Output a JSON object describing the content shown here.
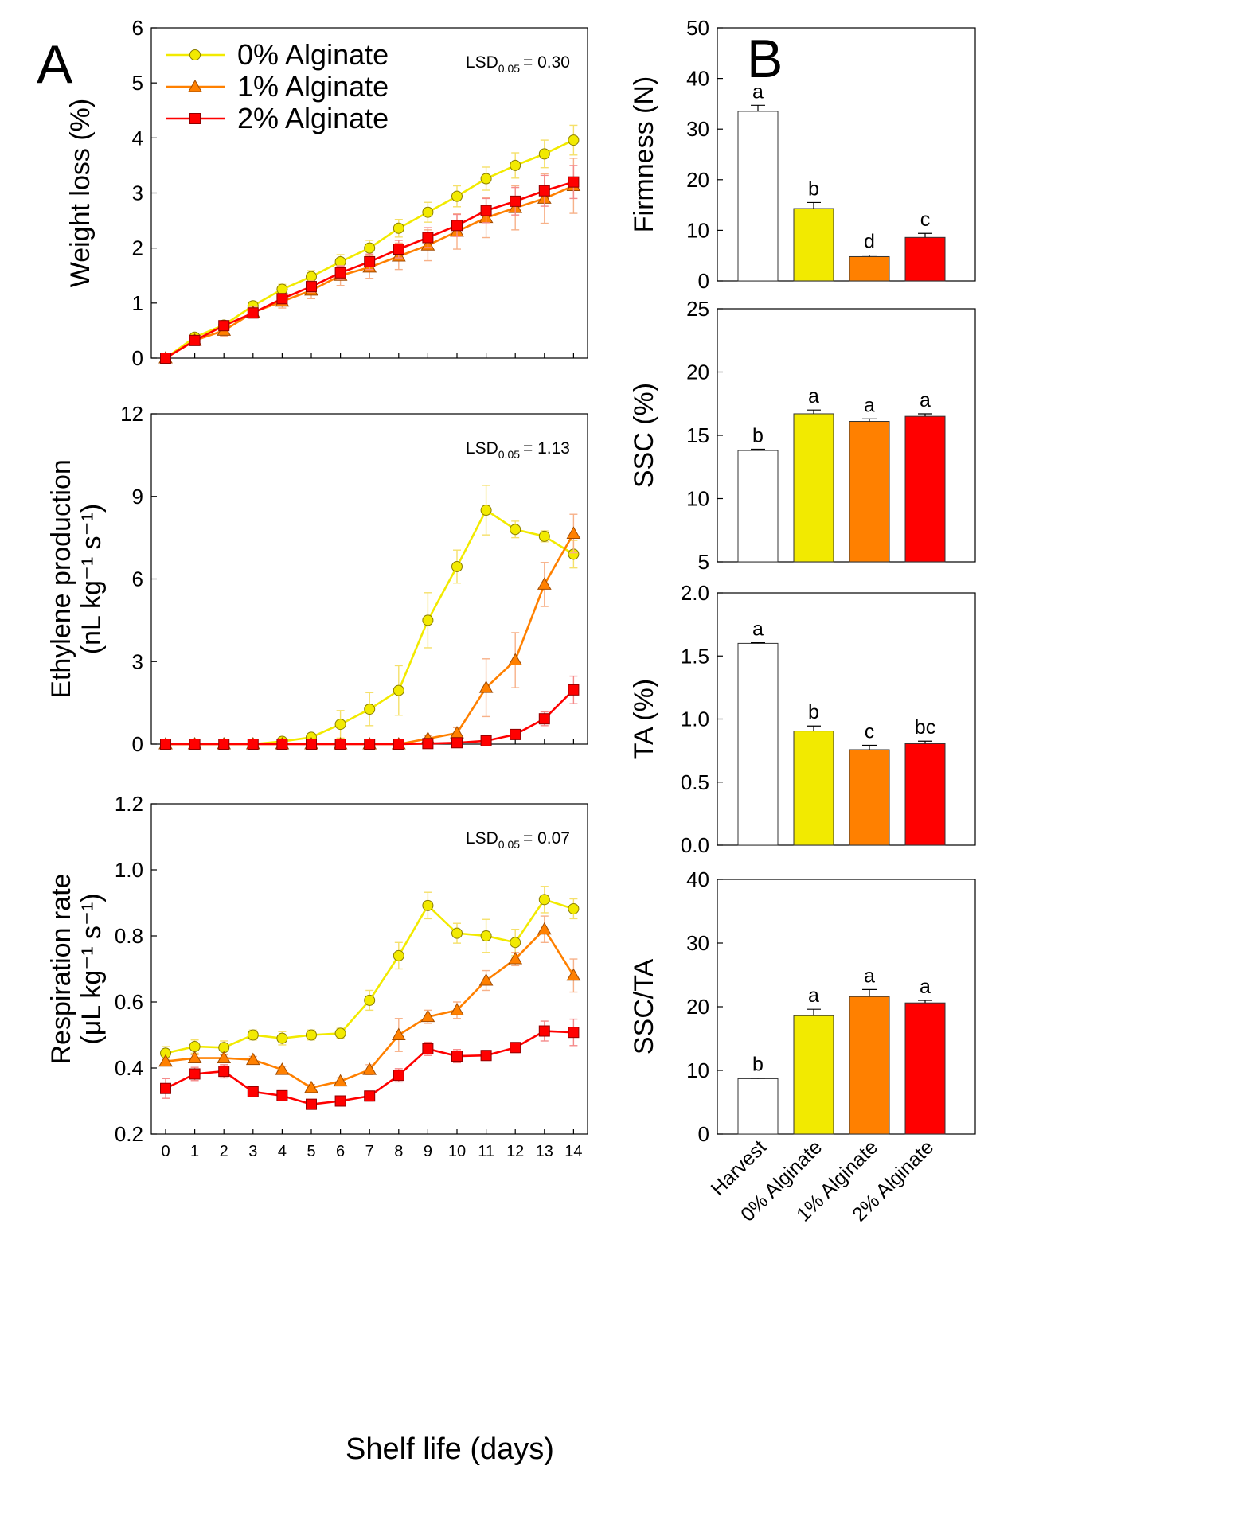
{
  "panels": {
    "A": "A",
    "B": "B"
  },
  "colors": {
    "c0": "#F2EA00",
    "c1": "#FF8000",
    "c2": "#FF0000",
    "harvest": "#FFFFFF",
    "err0": "#F5E06A",
    "err1": "#F7B189",
    "err2": "#F58A8A"
  },
  "legend": {
    "s0": "0% Alginate",
    "s1": "1% Alginate",
    "s2": "2% Alginate"
  },
  "lsd_prefix": "LSD",
  "lsd_sub": "0.05",
  "xlabel": "Shelf life (days)",
  "chart_data": [
    {
      "id": "weight",
      "type": "line",
      "ylabel": [
        "Weight loss (%)"
      ],
      "lsd_value": "= 0.30",
      "ylim": [
        0,
        6
      ],
      "yticks": [
        "0",
        "1",
        "2",
        "3",
        "4",
        "5",
        "6"
      ],
      "x": [
        0,
        1,
        2,
        3,
        4,
        5,
        6,
        7,
        8,
        9,
        10,
        11,
        12,
        13,
        14
      ],
      "series": [
        {
          "name": "0% Alginate",
          "marker": "circle",
          "values": [
            0,
            0.38,
            0.6,
            0.95,
            1.25,
            1.48,
            1.75,
            2.0,
            2.36,
            2.65,
            2.94,
            3.26,
            3.5,
            3.71,
            3.96
          ],
          "err": [
            0,
            0.05,
            0.07,
            0.08,
            0.09,
            0.11,
            0.13,
            0.14,
            0.16,
            0.18,
            0.19,
            0.21,
            0.23,
            0.25,
            0.27
          ]
        },
        {
          "name": "1% Alginate",
          "marker": "triangle",
          "values": [
            0,
            0.32,
            0.5,
            0.83,
            1.03,
            1.23,
            1.5,
            1.65,
            1.85,
            2.05,
            2.3,
            2.55,
            2.73,
            2.9,
            3.13
          ],
          "err": [
            0,
            0.05,
            0.1,
            0.1,
            0.12,
            0.15,
            0.18,
            0.2,
            0.24,
            0.28,
            0.32,
            0.36,
            0.4,
            0.45,
            0.5
          ]
        },
        {
          "name": "2% Alginate",
          "marker": "square",
          "values": [
            0,
            0.32,
            0.59,
            0.82,
            1.08,
            1.3,
            1.55,
            1.75,
            1.98,
            2.19,
            2.41,
            2.68,
            2.85,
            3.04,
            3.2
          ],
          "err": [
            0,
            0.04,
            0.06,
            0.07,
            0.09,
            0.1,
            0.12,
            0.14,
            0.16,
            0.18,
            0.2,
            0.22,
            0.25,
            0.28,
            0.3
          ]
        }
      ]
    },
    {
      "id": "ethylene",
      "type": "line",
      "ylabel": [
        "Ethylene production",
        "(nL kg⁻¹ s⁻¹)"
      ],
      "lsd_value": "= 1.13",
      "ylim": [
        0,
        12
      ],
      "yticks": [
        "0",
        "3",
        "6",
        "9",
        "12"
      ],
      "x": [
        0,
        1,
        2,
        3,
        4,
        5,
        6,
        7,
        8,
        9,
        10,
        11,
        12,
        13,
        14
      ],
      "series": [
        {
          "name": "0% Alginate",
          "marker": "circle",
          "values": [
            0,
            0,
            0,
            0,
            0.1,
            0.25,
            0.72,
            1.27,
            1.95,
            4.5,
            6.45,
            8.5,
            7.8,
            7.55,
            6.9
          ],
          "err": [
            0,
            0,
            0,
            0,
            0.05,
            0.1,
            0.5,
            0.6,
            0.9,
            1.0,
            0.6,
            0.9,
            0.3,
            0.2,
            0.5
          ]
        },
        {
          "name": "1% Alginate",
          "marker": "triangle",
          "values": [
            0,
            0,
            0,
            0,
            0,
            0,
            0,
            0,
            0,
            0.2,
            0.4,
            2.05,
            3.05,
            5.8,
            7.65
          ],
          "err": [
            0,
            0,
            0,
            0,
            0,
            0,
            0,
            0,
            0,
            0.1,
            0.2,
            1.05,
            1.0,
            0.8,
            0.7
          ]
        },
        {
          "name": "2% Alginate",
          "marker": "square",
          "values": [
            0,
            0,
            0,
            0,
            0,
            0,
            0,
            0,
            0,
            0.02,
            0.05,
            0.12,
            0.35,
            0.92,
            1.97
          ],
          "err": [
            0,
            0,
            0,
            0,
            0,
            0,
            0,
            0,
            0,
            0,
            0,
            0.05,
            0.1,
            0.25,
            0.5
          ]
        }
      ]
    },
    {
      "id": "respiration",
      "type": "line",
      "ylabel": [
        "Respiration rate",
        "(μL kg⁻¹ s⁻¹)"
      ],
      "lsd_value": "= 0.07",
      "ylim": [
        0.2,
        1.2
      ],
      "yticks": [
        "0.2",
        "0.4",
        "0.6",
        "0.8",
        "1.0",
        "1.2"
      ],
      "x": [
        0,
        1,
        2,
        3,
        4,
        5,
        6,
        7,
        8,
        9,
        10,
        11,
        12,
        13,
        14
      ],
      "xticks": [
        "0",
        "1",
        "2",
        "3",
        "4",
        "5",
        "6",
        "7",
        "8",
        "9",
        "10",
        "11",
        "12",
        "13",
        "14"
      ],
      "series": [
        {
          "name": "0% Alginate",
          "marker": "circle",
          "values": [
            0.445,
            0.465,
            0.462,
            0.5,
            0.49,
            0.5,
            0.505,
            0.605,
            0.74,
            0.892,
            0.808,
            0.8,
            0.78,
            0.91,
            0.882
          ],
          "err": [
            0.02,
            0.02,
            0.02,
            0.015,
            0.02,
            0.015,
            0.015,
            0.03,
            0.04,
            0.04,
            0.03,
            0.05,
            0.04,
            0.04,
            0.03
          ]
        },
        {
          "name": "1% Alginate",
          "marker": "triangle",
          "values": [
            0.42,
            0.43,
            0.43,
            0.425,
            0.395,
            0.34,
            0.36,
            0.395,
            0.5,
            0.555,
            0.575,
            0.665,
            0.73,
            0.82,
            0.68
          ],
          "err": [
            0.01,
            0.01,
            0.01,
            0.01,
            0.01,
            0.01,
            0.01,
            0.015,
            0.05,
            0.02,
            0.025,
            0.03,
            0.02,
            0.04,
            0.05
          ]
        },
        {
          "name": "2% Alginate",
          "marker": "square",
          "values": [
            0.338,
            0.382,
            0.39,
            0.328,
            0.316,
            0.29,
            0.3,
            0.315,
            0.378,
            0.458,
            0.436,
            0.438,
            0.462,
            0.512,
            0.508
          ],
          "err": [
            0.03,
            0.02,
            0.02,
            0.015,
            0.015,
            0.01,
            0.01,
            0.015,
            0.02,
            0.02,
            0.02,
            0.015,
            0.015,
            0.03,
            0.04
          ]
        }
      ]
    },
    {
      "id": "firmness",
      "type": "bar",
      "ylabel": [
        "Firmness (N)"
      ],
      "ylim": [
        0,
        50
      ],
      "yticks": [
        "0",
        "10",
        "20",
        "30",
        "40",
        "50"
      ],
      "categories": [
        "Harvest",
        "0% Alginate",
        "1% Alginate",
        "2% Alginate"
      ],
      "values": [
        33.5,
        14.3,
        4.8,
        8.6
      ],
      "err": [
        1.2,
        1.2,
        0.3,
        0.8
      ],
      "letters": [
        "a",
        "b",
        "d",
        "c"
      ]
    },
    {
      "id": "ssc",
      "type": "bar",
      "ylabel": [
        "SSC (%)"
      ],
      "ylim": [
        5,
        25
      ],
      "yticks": [
        "5",
        "10",
        "15",
        "20",
        "25"
      ],
      "categories": [
        "Harvest",
        "0% Alginate",
        "1% Alginate",
        "2% Alginate"
      ],
      "values": [
        13.8,
        16.7,
        16.1,
        16.5
      ],
      "err": [
        0.1,
        0.3,
        0.2,
        0.2
      ],
      "letters": [
        "b",
        "a",
        "a",
        "a"
      ]
    },
    {
      "id": "ta",
      "type": "bar",
      "ylabel": [
        "TA (%)"
      ],
      "ylim": [
        0,
        2.0
      ],
      "yticks": [
        "0.0",
        "0.5",
        "1.0",
        "1.5",
        "2.0"
      ],
      "categories": [
        "Harvest",
        "0% Alginate",
        "1% Alginate",
        "2% Alginate"
      ],
      "values": [
        1.6,
        0.905,
        0.757,
        0.805
      ],
      "err": [
        0.005,
        0.04,
        0.035,
        0.02
      ],
      "letters": [
        "a",
        "b",
        "c",
        "bc"
      ]
    },
    {
      "id": "sscta",
      "type": "bar",
      "ylabel": [
        "SSC/TA"
      ],
      "ylim": [
        0,
        40
      ],
      "yticks": [
        "0",
        "10",
        "20",
        "30",
        "40"
      ],
      "categories": [
        "Harvest",
        "0% Alginate",
        "1% Alginate",
        "2% Alginate"
      ],
      "values": [
        8.7,
        18.6,
        21.6,
        20.6
      ],
      "err": [
        0.1,
        1.0,
        1.1,
        0.4
      ],
      "letters": [
        "b",
        "a",
        "a",
        "a"
      ]
    }
  ]
}
